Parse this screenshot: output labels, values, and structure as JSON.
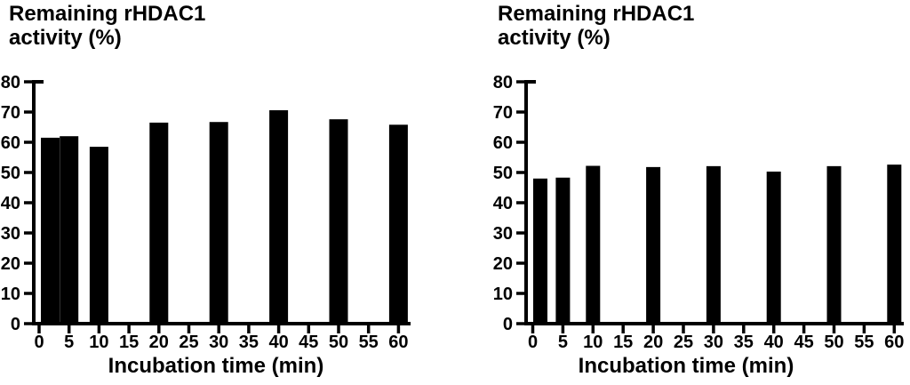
{
  "figure": {
    "background": "#ffffff",
    "ink_color": "#000000"
  },
  "chart_data": [
    {
      "type": "bar",
      "title_line1": "Remaining rHDAC1",
      "title_line2": "activity (%)",
      "xlabel": "Incubation time (min)",
      "x": [
        0,
        5,
        10,
        20,
        30,
        40,
        50,
        60
      ],
      "values": [
        61.5,
        62.0,
        58.5,
        66.5,
        66.7,
        70.6,
        67.6,
        65.8
      ],
      "x_ticks": [
        0,
        5,
        10,
        15,
        20,
        25,
        30,
        35,
        40,
        45,
        50,
        55,
        60
      ],
      "y_ticks": [
        0,
        10,
        20,
        30,
        40,
        50,
        60,
        70,
        80
      ],
      "ylim": [
        0,
        80
      ],
      "xlim": [
        0,
        60
      ],
      "bar_color": "#000000",
      "grid": false,
      "legend": null
    },
    {
      "type": "bar",
      "title_line1": "Remaining rHDAC1",
      "title_line2": "activity (%)",
      "xlabel": "Incubation time (min)",
      "x": [
        0,
        5,
        10,
        20,
        30,
        40,
        50,
        60
      ],
      "values": [
        48.0,
        48.3,
        52.2,
        51.8,
        52.1,
        50.3,
        52.1,
        52.6
      ],
      "x_ticks": [
        0,
        5,
        10,
        15,
        20,
        25,
        30,
        35,
        40,
        45,
        50,
        55,
        60
      ],
      "y_ticks": [
        0,
        10,
        20,
        30,
        40,
        50,
        60,
        70,
        80
      ],
      "ylim": [
        0,
        80
      ],
      "xlim": [
        0,
        60
      ],
      "bar_color": "#000000",
      "grid": false,
      "legend": null
    }
  ]
}
